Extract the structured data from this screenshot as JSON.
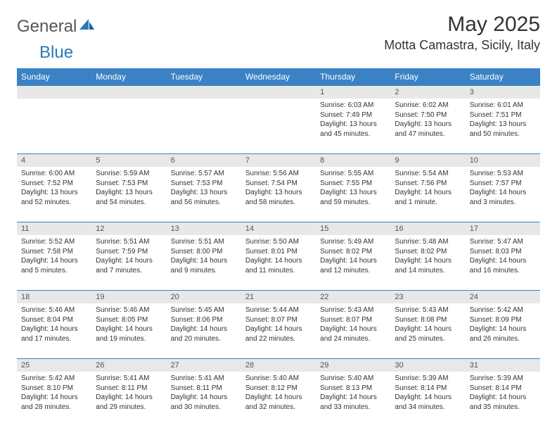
{
  "logo": {
    "text1": "General",
    "text2": "Blue"
  },
  "title": "May 2025",
  "location": "Motta Camastra, Sicily, Italy",
  "colors": {
    "header_bg": "#3a82c4",
    "header_text": "#ffffff",
    "daynum_bg": "#e8e8e8",
    "border": "#3a82c4",
    "text": "#333333",
    "logo_gray": "#555555",
    "logo_blue": "#2a7ab8",
    "page_bg": "#ffffff"
  },
  "day_names": [
    "Sunday",
    "Monday",
    "Tuesday",
    "Wednesday",
    "Thursday",
    "Friday",
    "Saturday"
  ],
  "weeks": [
    [
      null,
      null,
      null,
      null,
      {
        "n": "1",
        "sr": "Sunrise: 6:03 AM",
        "ss": "Sunset: 7:49 PM",
        "d1": "Daylight: 13 hours",
        "d2": "and 45 minutes."
      },
      {
        "n": "2",
        "sr": "Sunrise: 6:02 AM",
        "ss": "Sunset: 7:50 PM",
        "d1": "Daylight: 13 hours",
        "d2": "and 47 minutes."
      },
      {
        "n": "3",
        "sr": "Sunrise: 6:01 AM",
        "ss": "Sunset: 7:51 PM",
        "d1": "Daylight: 13 hours",
        "d2": "and 50 minutes."
      }
    ],
    [
      {
        "n": "4",
        "sr": "Sunrise: 6:00 AM",
        "ss": "Sunset: 7:52 PM",
        "d1": "Daylight: 13 hours",
        "d2": "and 52 minutes."
      },
      {
        "n": "5",
        "sr": "Sunrise: 5:59 AM",
        "ss": "Sunset: 7:53 PM",
        "d1": "Daylight: 13 hours",
        "d2": "and 54 minutes."
      },
      {
        "n": "6",
        "sr": "Sunrise: 5:57 AM",
        "ss": "Sunset: 7:53 PM",
        "d1": "Daylight: 13 hours",
        "d2": "and 56 minutes."
      },
      {
        "n": "7",
        "sr": "Sunrise: 5:56 AM",
        "ss": "Sunset: 7:54 PM",
        "d1": "Daylight: 13 hours",
        "d2": "and 58 minutes."
      },
      {
        "n": "8",
        "sr": "Sunrise: 5:55 AM",
        "ss": "Sunset: 7:55 PM",
        "d1": "Daylight: 13 hours",
        "d2": "and 59 minutes."
      },
      {
        "n": "9",
        "sr": "Sunrise: 5:54 AM",
        "ss": "Sunset: 7:56 PM",
        "d1": "Daylight: 14 hours",
        "d2": "and 1 minute."
      },
      {
        "n": "10",
        "sr": "Sunrise: 5:53 AM",
        "ss": "Sunset: 7:57 PM",
        "d1": "Daylight: 14 hours",
        "d2": "and 3 minutes."
      }
    ],
    [
      {
        "n": "11",
        "sr": "Sunrise: 5:52 AM",
        "ss": "Sunset: 7:58 PM",
        "d1": "Daylight: 14 hours",
        "d2": "and 5 minutes."
      },
      {
        "n": "12",
        "sr": "Sunrise: 5:51 AM",
        "ss": "Sunset: 7:59 PM",
        "d1": "Daylight: 14 hours",
        "d2": "and 7 minutes."
      },
      {
        "n": "13",
        "sr": "Sunrise: 5:51 AM",
        "ss": "Sunset: 8:00 PM",
        "d1": "Daylight: 14 hours",
        "d2": "and 9 minutes."
      },
      {
        "n": "14",
        "sr": "Sunrise: 5:50 AM",
        "ss": "Sunset: 8:01 PM",
        "d1": "Daylight: 14 hours",
        "d2": "and 11 minutes."
      },
      {
        "n": "15",
        "sr": "Sunrise: 5:49 AM",
        "ss": "Sunset: 8:02 PM",
        "d1": "Daylight: 14 hours",
        "d2": "and 12 minutes."
      },
      {
        "n": "16",
        "sr": "Sunrise: 5:48 AM",
        "ss": "Sunset: 8:02 PM",
        "d1": "Daylight: 14 hours",
        "d2": "and 14 minutes."
      },
      {
        "n": "17",
        "sr": "Sunrise: 5:47 AM",
        "ss": "Sunset: 8:03 PM",
        "d1": "Daylight: 14 hours",
        "d2": "and 16 minutes."
      }
    ],
    [
      {
        "n": "18",
        "sr": "Sunrise: 5:46 AM",
        "ss": "Sunset: 8:04 PM",
        "d1": "Daylight: 14 hours",
        "d2": "and 17 minutes."
      },
      {
        "n": "19",
        "sr": "Sunrise: 5:46 AM",
        "ss": "Sunset: 8:05 PM",
        "d1": "Daylight: 14 hours",
        "d2": "and 19 minutes."
      },
      {
        "n": "20",
        "sr": "Sunrise: 5:45 AM",
        "ss": "Sunset: 8:06 PM",
        "d1": "Daylight: 14 hours",
        "d2": "and 20 minutes."
      },
      {
        "n": "21",
        "sr": "Sunrise: 5:44 AM",
        "ss": "Sunset: 8:07 PM",
        "d1": "Daylight: 14 hours",
        "d2": "and 22 minutes."
      },
      {
        "n": "22",
        "sr": "Sunrise: 5:43 AM",
        "ss": "Sunset: 8:07 PM",
        "d1": "Daylight: 14 hours",
        "d2": "and 24 minutes."
      },
      {
        "n": "23",
        "sr": "Sunrise: 5:43 AM",
        "ss": "Sunset: 8:08 PM",
        "d1": "Daylight: 14 hours",
        "d2": "and 25 minutes."
      },
      {
        "n": "24",
        "sr": "Sunrise: 5:42 AM",
        "ss": "Sunset: 8:09 PM",
        "d1": "Daylight: 14 hours",
        "d2": "and 26 minutes."
      }
    ],
    [
      {
        "n": "25",
        "sr": "Sunrise: 5:42 AM",
        "ss": "Sunset: 8:10 PM",
        "d1": "Daylight: 14 hours",
        "d2": "and 28 minutes."
      },
      {
        "n": "26",
        "sr": "Sunrise: 5:41 AM",
        "ss": "Sunset: 8:11 PM",
        "d1": "Daylight: 14 hours",
        "d2": "and 29 minutes."
      },
      {
        "n": "27",
        "sr": "Sunrise: 5:41 AM",
        "ss": "Sunset: 8:11 PM",
        "d1": "Daylight: 14 hours",
        "d2": "and 30 minutes."
      },
      {
        "n": "28",
        "sr": "Sunrise: 5:40 AM",
        "ss": "Sunset: 8:12 PM",
        "d1": "Daylight: 14 hours",
        "d2": "and 32 minutes."
      },
      {
        "n": "29",
        "sr": "Sunrise: 5:40 AM",
        "ss": "Sunset: 8:13 PM",
        "d1": "Daylight: 14 hours",
        "d2": "and 33 minutes."
      },
      {
        "n": "30",
        "sr": "Sunrise: 5:39 AM",
        "ss": "Sunset: 8:14 PM",
        "d1": "Daylight: 14 hours",
        "d2": "and 34 minutes."
      },
      {
        "n": "31",
        "sr": "Sunrise: 5:39 AM",
        "ss": "Sunset: 8:14 PM",
        "d1": "Daylight: 14 hours",
        "d2": "and 35 minutes."
      }
    ]
  ]
}
